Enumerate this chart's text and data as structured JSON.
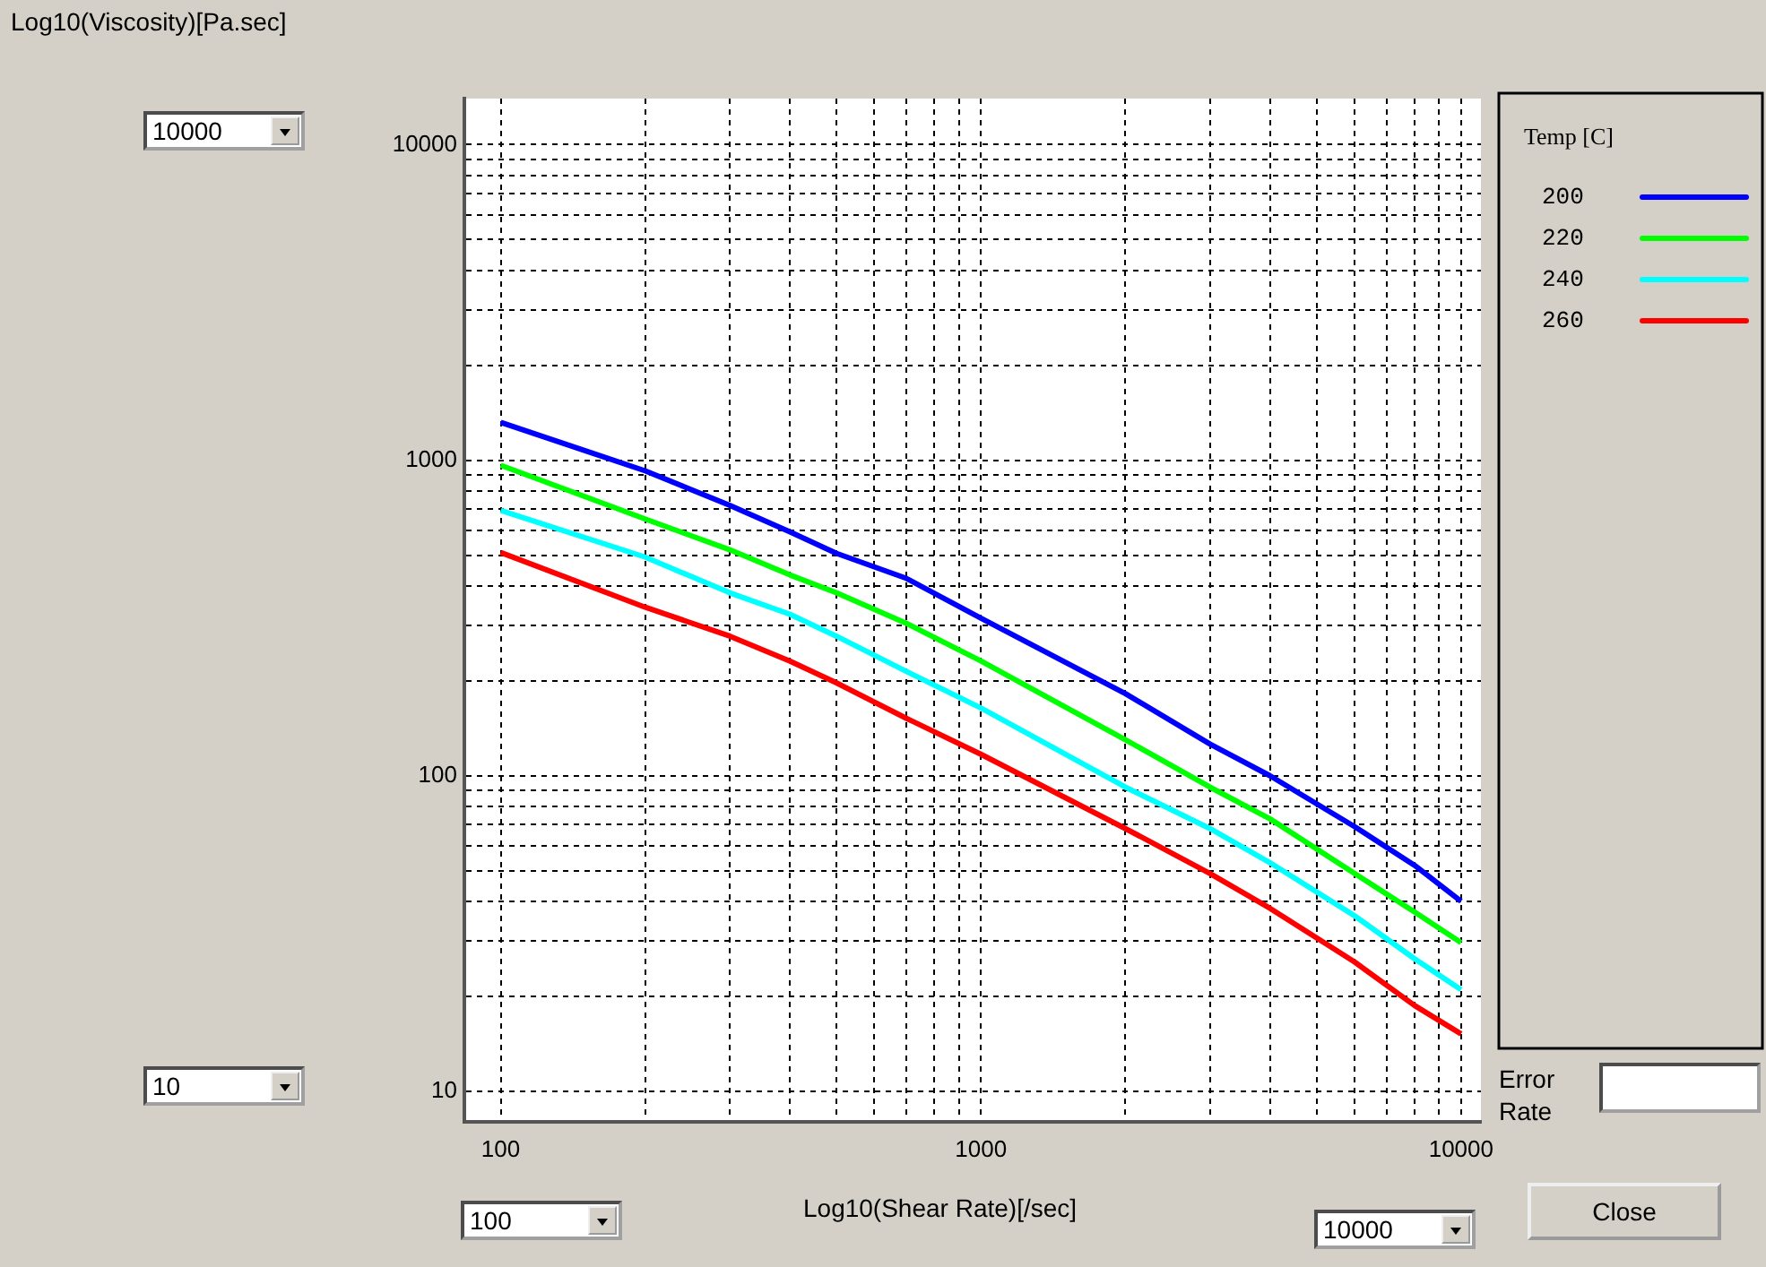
{
  "chart_data": {
    "type": "line",
    "xlabel": "Log10(Shear Rate)[/sec]",
    "ylabel": "Log10(Viscosity)[Pa.sec]",
    "legend_title": "Temp [C]",
    "legend": "right",
    "log": "xy",
    "grid": true,
    "marker": "none",
    "x": [
      100,
      200,
      300,
      400,
      500,
      700,
      1000,
      2000,
      3000,
      4000,
      6000,
      8000,
      10000
    ],
    "series": [
      {
        "name": "200",
        "color": "#0000ff",
        "values": [
          1318,
          925,
          719,
          593,
          507,
          422,
          316,
          182,
          126,
          100,
          69,
          52,
          40
        ]
      },
      {
        "name": "220",
        "color": "#00ff00",
        "values": [
          964,
          651,
          520,
          433,
          380,
          304,
          231,
          130,
          92,
          73,
          49,
          37,
          29.6
        ]
      },
      {
        "name": "240",
        "color": "#00ffff",
        "values": [
          693,
          493,
          380,
          325,
          277,
          214,
          164,
          92,
          68,
          53,
          36,
          26.3,
          21
        ]
      },
      {
        "name": "260",
        "color": "#ff0000",
        "values": [
          510,
          342,
          277,
          231,
          197,
          152,
          117,
          68,
          49,
          38,
          25.7,
          18.7,
          15.2
        ]
      }
    ],
    "xlim": [
      84,
      11000
    ],
    "ylim": [
      8,
      14000
    ],
    "xticks": [
      100,
      {
        "value": 200,
        "label": null
      },
      {
        "value": 300,
        "label": null
      },
      {
        "value": 400,
        "label": null
      },
      {
        "value": 500,
        "label": null
      },
      {
        "value": 600,
        "label": null
      },
      {
        "value": 700,
        "label": null
      },
      {
        "value": 800,
        "label": null
      },
      {
        "value": 900,
        "label": null
      },
      1000,
      {
        "value": 2000,
        "label": null
      },
      {
        "value": 3000,
        "label": null
      },
      {
        "value": 4000,
        "label": null
      },
      {
        "value": 5000,
        "label": null
      },
      {
        "value": 6000,
        "label": null
      },
      {
        "value": 7000,
        "label": null
      },
      {
        "value": 8000,
        "label": null
      },
      {
        "value": 9000,
        "label": null
      },
      10000
    ],
    "yticks": [
      10,
      {
        "value": 20,
        "label": null
      },
      {
        "value": 30,
        "label": null
      },
      {
        "value": 40,
        "label": null
      },
      {
        "value": 50,
        "label": null
      },
      {
        "value": 60,
        "label": null
      },
      {
        "value": 70,
        "label": null
      },
      {
        "value": 80,
        "label": null
      },
      {
        "value": 90,
        "label": null
      },
      100,
      {
        "value": 200,
        "label": null
      },
      {
        "value": 300,
        "label": null
      },
      {
        "value": 400,
        "label": null
      },
      {
        "value": 500,
        "label": null
      },
      {
        "value": 600,
        "label": null
      },
      {
        "value": 700,
        "label": null
      },
      {
        "value": 800,
        "label": null
      },
      {
        "value": 900,
        "label": null
      },
      1000,
      {
        "value": 2000,
        "label": null
      },
      {
        "value": 3000,
        "label": null
      },
      {
        "value": 4000,
        "label": null
      },
      {
        "value": 5000,
        "label": null
      },
      {
        "value": 6000,
        "label": null
      },
      {
        "value": 7000,
        "label": null
      },
      {
        "value": 8000,
        "label": null
      },
      {
        "value": 9000,
        "label": null
      },
      10000
    ],
    "annotations": [
      "10000",
      "10",
      "100",
      "10000",
      "Error Rate",
      "Close"
    ]
  }
}
